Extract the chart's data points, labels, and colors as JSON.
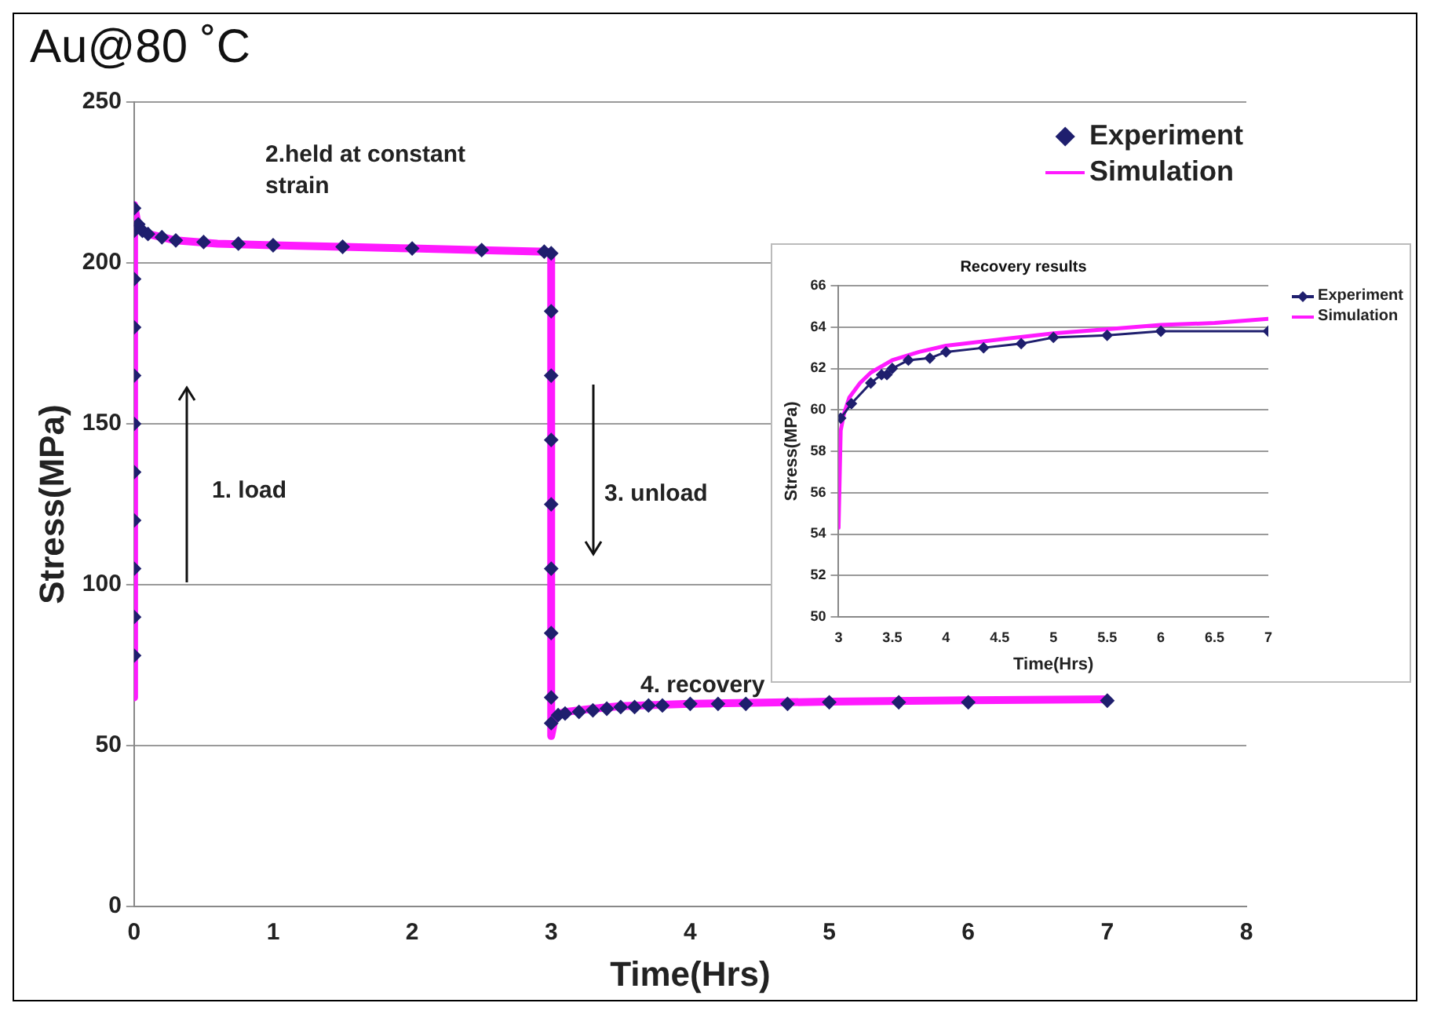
{
  "chart_data": [
    {
      "type": "line",
      "title": "Au@80 ˚C",
      "xlabel": "Time(Hrs)",
      "ylabel": "Stress(MPa)",
      "xlim": [
        0,
        8
      ],
      "xticks": [
        0,
        1,
        2,
        3,
        4,
        5,
        6,
        7,
        8
      ],
      "ylim": [
        0,
        250
      ],
      "yticks": [
        0,
        50,
        100,
        150,
        200,
        250
      ],
      "grid": "y",
      "legend": "top right",
      "line_style": "solid",
      "series": [
        {
          "name": "Experiment",
          "type": "scatter",
          "marker": "diamond",
          "color": "#1f1f6e",
          "x": [
            0,
            0,
            0,
            0,
            0,
            0,
            0,
            0,
            0,
            0,
            0,
            0.03,
            0.06,
            0.1,
            0.2,
            0.3,
            0.5,
            0.75,
            1,
            1.5,
            2,
            2.5,
            2.95,
            3,
            3,
            3,
            3,
            3,
            3,
            3,
            3,
            3,
            3.05,
            3.1,
            3.2,
            3.3,
            3.4,
            3.5,
            3.6,
            3.7,
            3.8,
            4,
            4.2,
            4.4,
            4.7,
            5,
            5.5,
            6,
            7
          ],
          "values": [
            78,
            90,
            105,
            120,
            135,
            150,
            165,
            180,
            195,
            210,
            217,
            212,
            210,
            209,
            208,
            207,
            206.5,
            206,
            205.5,
            205,
            204.5,
            204,
            203.5,
            203,
            185,
            165,
            145,
            125,
            105,
            85,
            65,
            57,
            59.5,
            60,
            60.5,
            61,
            61.5,
            62,
            62,
            62.5,
            62.5,
            63,
            63,
            63,
            63,
            63.5,
            63.5,
            63.5,
            64
          ]
        },
        {
          "name": "Simulation",
          "type": "line",
          "marker": "none",
          "color": "#ff1aff",
          "x": [
            0,
            0,
            0.03,
            0.1,
            0.3,
            0.6,
            1,
            1.5,
            2,
            2.5,
            2.97,
            3,
            3,
            3.03,
            3.1,
            3.3,
            3.5,
            4,
            5,
            6,
            7
          ],
          "values": [
            65,
            218,
            211,
            209,
            207,
            206,
            205.5,
            205,
            204.5,
            204,
            203.5,
            203,
            53,
            59.5,
            60.5,
            61.5,
            62.3,
            63,
            63.7,
            64.1,
            64.4
          ]
        }
      ],
      "annotations": [
        "2.held at constant strain",
        "1. load",
        "3. unload",
        "4. recovery"
      ]
    },
    {
      "type": "line",
      "title": "Recovery results",
      "xlabel": "Time(Hrs)",
      "ylabel": "Stress(MPa)",
      "xlim": [
        3,
        7
      ],
      "xticks": [
        3,
        3.5,
        4,
        4.5,
        5,
        5.5,
        6,
        6.5,
        7
      ],
      "ylim": [
        50,
        66
      ],
      "yticks": [
        50,
        52,
        54,
        56,
        58,
        60,
        62,
        64,
        66
      ],
      "grid": "y",
      "legend": "right",
      "line_style": "solid",
      "series": [
        {
          "name": "Experiment",
          "marker": "diamond",
          "color": "#1f1f6e",
          "x": [
            3.02,
            3.12,
            3.3,
            3.4,
            3.45,
            3.5,
            3.65,
            3.85,
            4,
            4.35,
            4.7,
            5,
            5.5,
            6,
            7
          ],
          "values": [
            59.6,
            60.3,
            61.3,
            61.7,
            61.7,
            62,
            62.4,
            62.5,
            62.8,
            63,
            63.2,
            63.5,
            63.6,
            63.8,
            63.8
          ]
        },
        {
          "name": "Simulation",
          "marker": "none",
          "color": "#ff1aff",
          "x": [
            3,
            3.02,
            3.05,
            3.1,
            3.2,
            3.3,
            3.5,
            3.75,
            4,
            4.5,
            5,
            5.5,
            6,
            6.5,
            7
          ],
          "values": [
            54.3,
            59,
            59.8,
            60.6,
            61.3,
            61.8,
            62.4,
            62.8,
            63.1,
            63.4,
            63.7,
            63.9,
            64.1,
            64.2,
            64.4
          ]
        }
      ]
    }
  ]
}
